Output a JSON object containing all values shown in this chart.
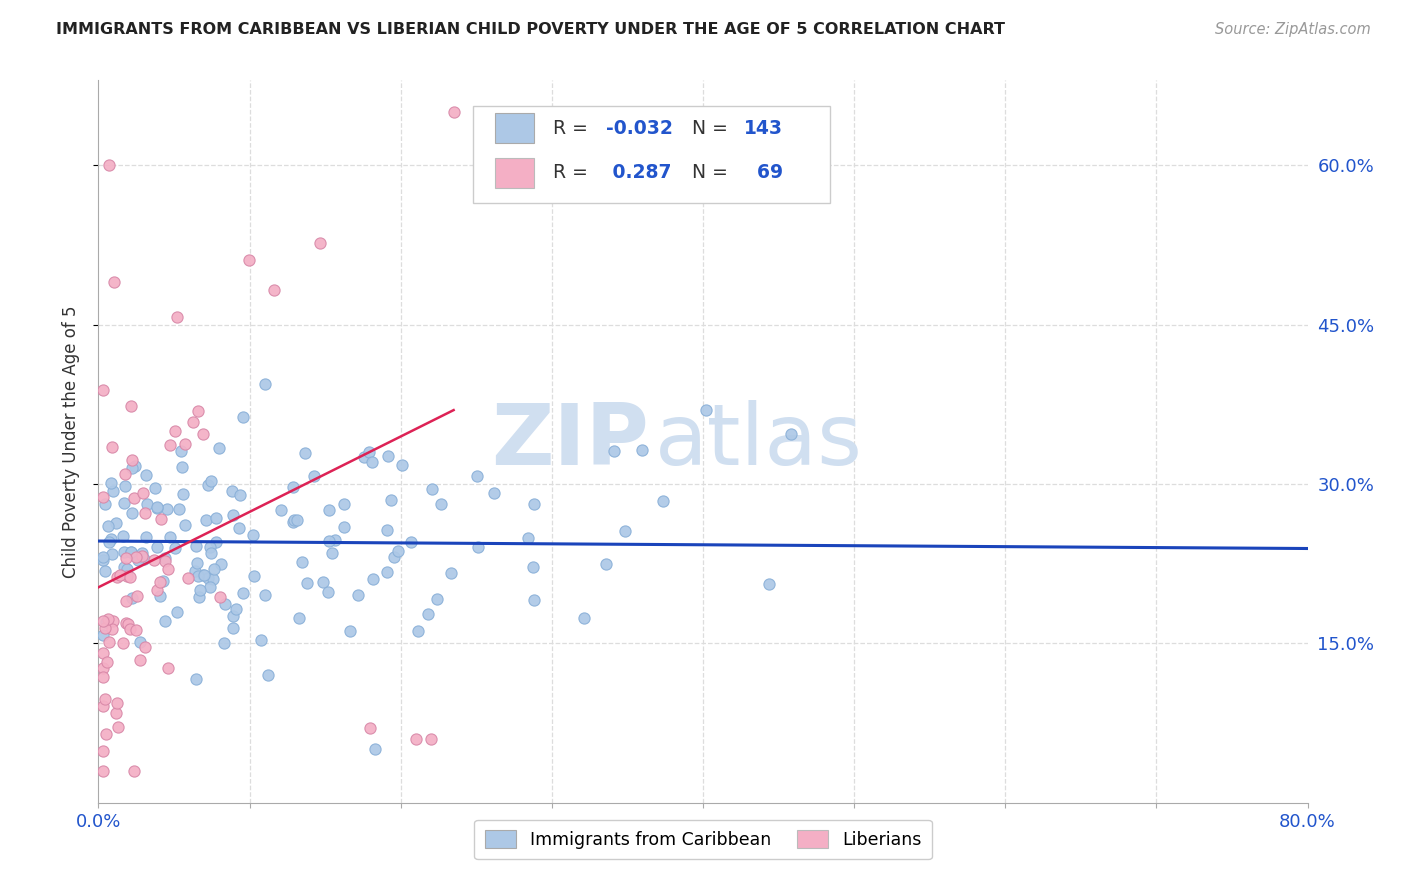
{
  "title": "IMMIGRANTS FROM CARIBBEAN VS LIBERIAN CHILD POVERTY UNDER THE AGE OF 5 CORRELATION CHART",
  "source": "Source: ZipAtlas.com",
  "ylabel": "Child Poverty Under the Age of 5",
  "xlim": [
    0.0,
    0.8
  ],
  "ylim": [
    0.0,
    0.68
  ],
  "yticks": [
    0.15,
    0.3,
    0.45,
    0.6
  ],
  "yticklabels": [
    "15.0%",
    "30.0%",
    "45.0%",
    "60.0%"
  ],
  "legend_r1": "-0.032",
  "legend_n1": "143",
  "legend_r2": "0.287",
  "legend_n2": "69",
  "blue_color": "#adc8e6",
  "pink_color": "#f4afc5",
  "blue_line_color": "#1a44bb",
  "pink_line_color": "#dd2255",
  "watermark_zip": "ZIP",
  "watermark_atlas": "atlas",
  "watermark_color": "#d0dff0",
  "background_color": "#ffffff",
  "legend_label1": "Immigrants from Caribbean",
  "legend_label2": "Liberians",
  "grid_color": "#dddddd",
  "title_color": "#222222",
  "tick_color": "#2255cc",
  "axis_color": "#aaaaaa"
}
